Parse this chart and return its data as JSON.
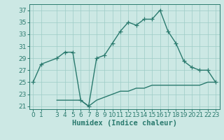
{
  "xlabel": "Humidex (Indice chaleur)",
  "line1_x": [
    0,
    1,
    3,
    4,
    5,
    6,
    7,
    8,
    9,
    10,
    11,
    12,
    13,
    14,
    15,
    16,
    17,
    18,
    19,
    20,
    21,
    22,
    23
  ],
  "line1_y": [
    25,
    28,
    29,
    30,
    30,
    22,
    21,
    29,
    29.5,
    31.5,
    33.5,
    35,
    34.5,
    35.5,
    35.5,
    37,
    33.5,
    31.5,
    28.5,
    27.5,
    27,
    27,
    25
  ],
  "line2_x": [
    3,
    4,
    5,
    6,
    7,
    8,
    9,
    10,
    11,
    12,
    13,
    14,
    15,
    16,
    17,
    18,
    19,
    20,
    21,
    22,
    23
  ],
  "line2_y": [
    22,
    22,
    22,
    22,
    21,
    22,
    22.5,
    23,
    23.5,
    23.5,
    24,
    24,
    24.5,
    24.5,
    24.5,
    24.5,
    24.5,
    24.5,
    24.5,
    25,
    25
  ],
  "line_color": "#2a7a6e",
  "bg_color": "#cce8e4",
  "grid_color": "#9eccc6",
  "ylim": [
    20.5,
    38
  ],
  "yticks": [
    21,
    23,
    25,
    27,
    29,
    31,
    33,
    35,
    37
  ],
  "xlim": [
    -0.5,
    23.5
  ],
  "xticks": [
    0,
    1,
    3,
    4,
    5,
    6,
    7,
    8,
    9,
    10,
    11,
    12,
    13,
    14,
    15,
    16,
    17,
    18,
    19,
    20,
    21,
    22,
    23
  ],
  "marker": "+",
  "marker_size": 4,
  "line_width": 1.0,
  "font_size": 6.5,
  "xlabel_fontsize": 7.5
}
